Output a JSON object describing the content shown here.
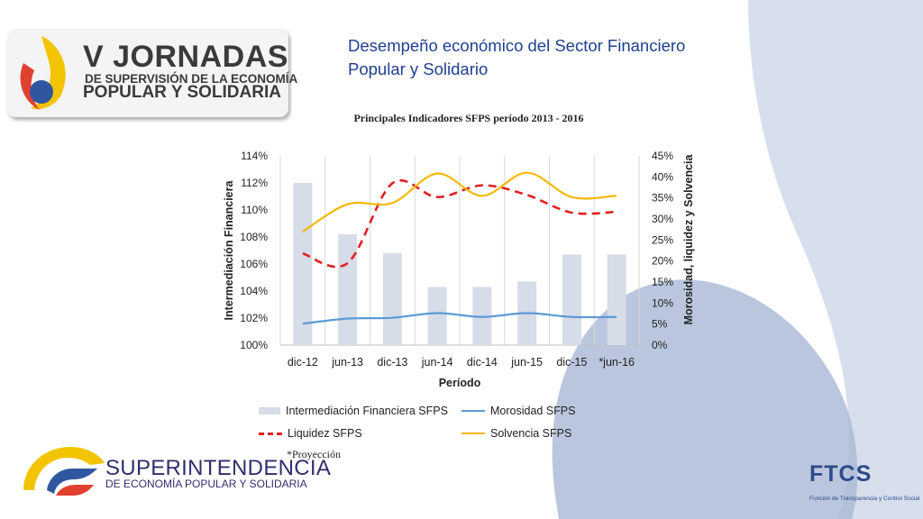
{
  "header": {
    "logo_line1": "V JORNADAS",
    "logo_line2": "DE SUPERVISIÓN DE LA ECONOMÍA",
    "logo_line3": "POPULAR Y SOLIDARIA",
    "slide_title_line1": "Desempeño económico del Sector Financiero",
    "slide_title_line2": "Popular y Solidario"
  },
  "chart_data": {
    "type": "bar",
    "title": "Principales Indicadores SFPS período 2013 - 2016",
    "xlabel": "Período",
    "ylabel": "Intermediación Financiera",
    "y2label": "Morosidad, liquidez y Solvencia",
    "categories": [
      "dic-12",
      "jun-13",
      "dic-13",
      "jun-14",
      "dic-14",
      "jun-15",
      "dic-15",
      "*jun-16"
    ],
    "ylim": [
      1.0,
      1.14
    ],
    "yticks": [
      "100%",
      "102%",
      "104%",
      "106%",
      "108%",
      "110%",
      "112%",
      "114%"
    ],
    "y2lim": [
      0,
      0.45
    ],
    "y2ticks": [
      "0%",
      "5%",
      "10%",
      "15%",
      "20%",
      "25%",
      "30%",
      "35%",
      "40%",
      "45%"
    ],
    "grid": "vertical",
    "legend_position": "bottom",
    "series": [
      {
        "name": "Intermediación Financiera SFPS",
        "type": "bar",
        "axis": "left",
        "color": "#d6dce8",
        "values": [
          1.12,
          1.082,
          1.068,
          1.043,
          1.043,
          1.047,
          1.067,
          1.067
        ]
      },
      {
        "name": "Morosidad SFPS",
        "type": "line",
        "axis": "right",
        "color": "#5b9bd5",
        "style": "solid",
        "values": [
          0.051,
          0.063,
          0.065,
          0.076,
          0.067,
          0.076,
          0.067,
          0.067
        ]
      },
      {
        "name": "Liquidez SFPS",
        "type": "line",
        "axis": "right",
        "color": "#e02020",
        "style": "dashed",
        "values": [
          0.218,
          0.195,
          0.385,
          0.352,
          0.38,
          0.357,
          0.315,
          0.317
        ]
      },
      {
        "name": "Solvencia SFPS",
        "type": "line",
        "axis": "right",
        "color": "#f5b800",
        "style": "solid",
        "values": [
          0.27,
          0.335,
          0.338,
          0.408,
          0.355,
          0.41,
          0.352,
          0.355
        ]
      }
    ]
  },
  "footer": {
    "note": "*Proyección",
    "institution_line1": "SUPERINTENDENCIA",
    "institution_line2": "DE ECONOMÍA POPULAR Y SOLIDARIA",
    "ftcs_label": "FTCS",
    "ftcs_subtitle": "Función de Transparencia y Control Social"
  }
}
